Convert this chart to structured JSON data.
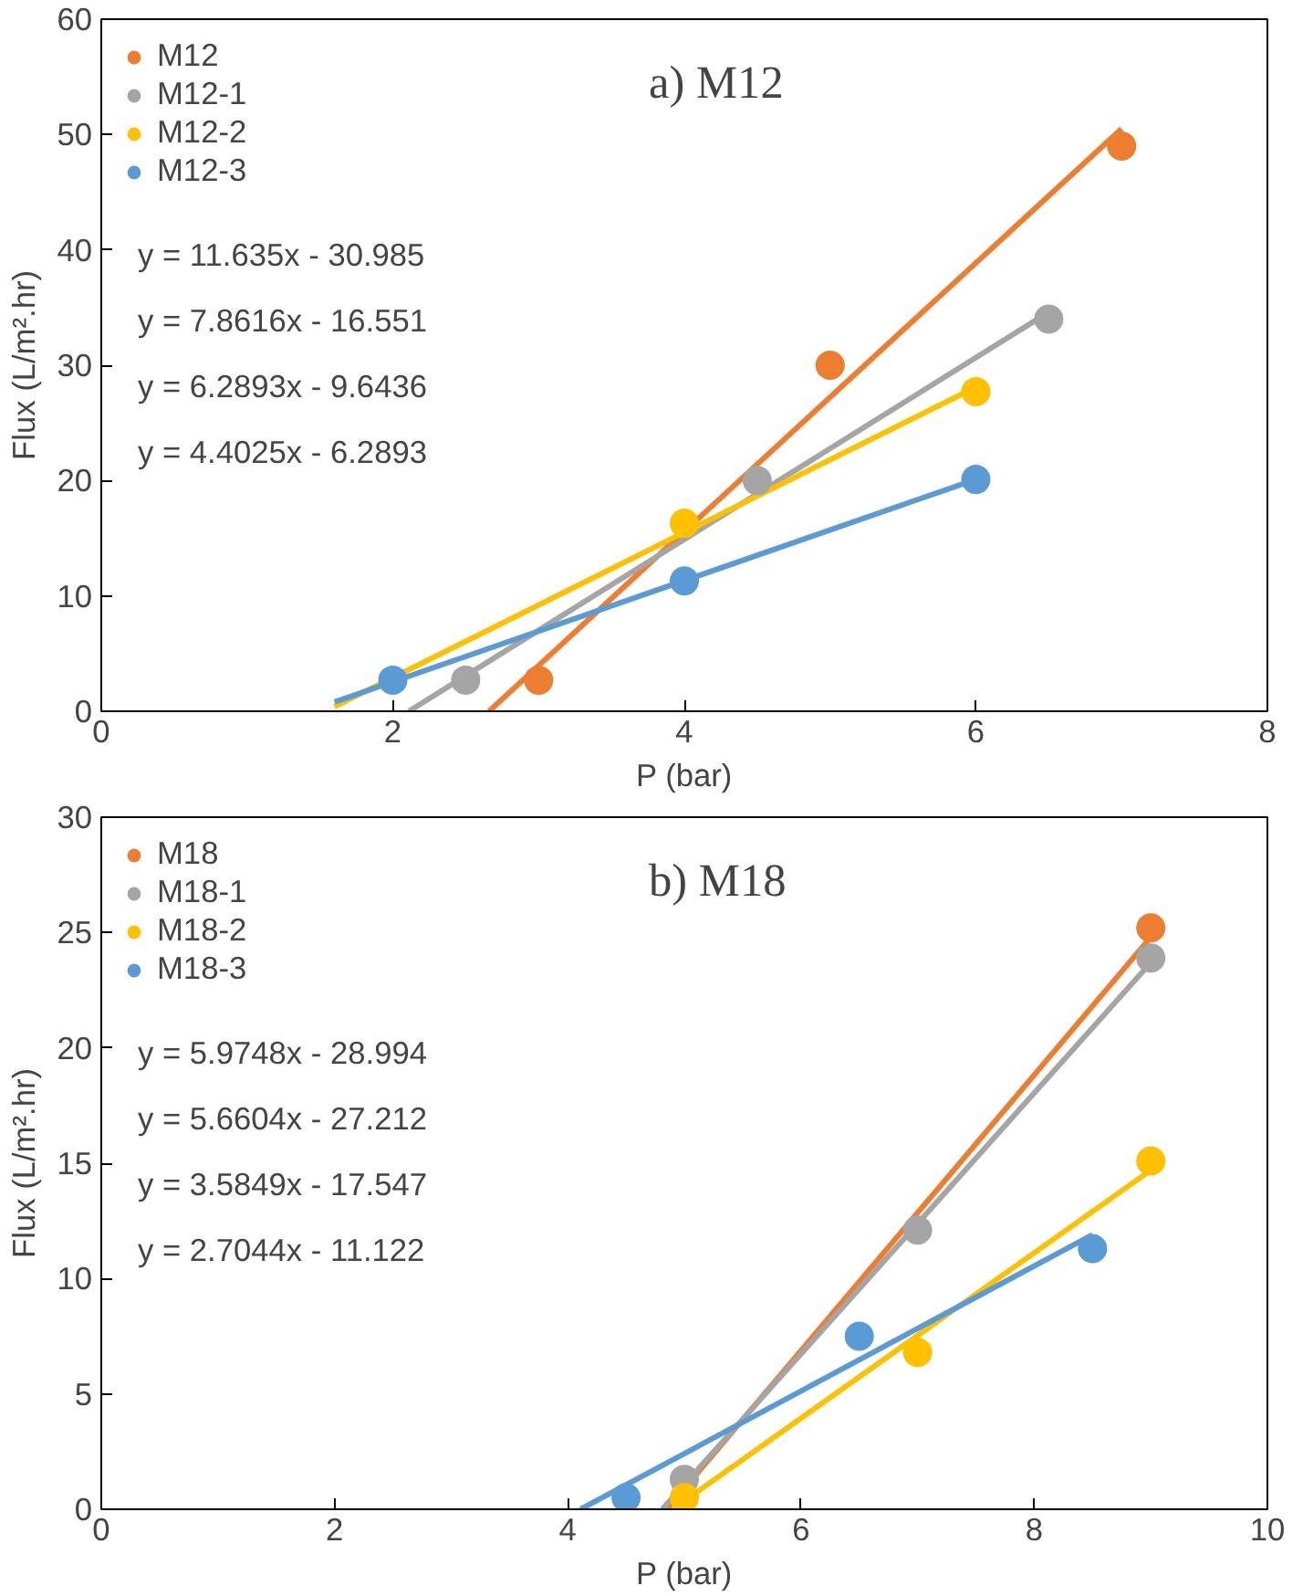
{
  "chart_data": [
    {
      "type": "scatter",
      "title": "a) M12",
      "xlabel": "P (bar)",
      "ylabel": "Flux (L/m².hr)",
      "xlim": [
        0,
        8
      ],
      "ylim": [
        0,
        60
      ],
      "xticks": [
        0,
        2,
        4,
        6,
        8
      ],
      "yticks": [
        0,
        10,
        20,
        30,
        40,
        50,
        60
      ],
      "grid": false,
      "legend": "top left",
      "marker": "circle",
      "series": [
        {
          "type": "line",
          "color": "#ed7d31",
          "x": [
            2.66,
            7
          ],
          "values": [
            0,
            50.5
          ],
          "marker": "none"
        },
        {
          "type": "line",
          "color": "#a5a5a5",
          "x": [
            2.11,
            6.5
          ],
          "values": [
            0,
            34.6
          ],
          "marker": "none"
        },
        {
          "type": "line",
          "color": "#ffc000",
          "x": [
            1.6,
            6
          ],
          "values": [
            0.4,
            28.1
          ],
          "marker": "none"
        },
        {
          "type": "line",
          "color": "#5b9bd5",
          "x": [
            1.6,
            6
          ],
          "values": [
            0.8,
            20.1
          ],
          "marker": "none"
        },
        {
          "name": "M12",
          "color": "#ed7d31",
          "x": [
            3,
            5,
            7
          ],
          "values": [
            2.7,
            30,
            49
          ]
        },
        {
          "name": "M12-1",
          "color": "#a5a5a5",
          "x": [
            2.5,
            4.5,
            6.5
          ],
          "values": [
            2.7,
            20,
            34
          ]
        },
        {
          "name": "M12-2",
          "color": "#ffc000",
          "x": [
            4,
            6
          ],
          "values": [
            16.3,
            27.7
          ]
        },
        {
          "name": "M12-3",
          "color": "#5b9bd5",
          "x": [
            2,
            4,
            6
          ],
          "values": [
            2.7,
            11.3,
            20.1
          ]
        }
      ],
      "annotations": [
        "y = 11.635x - 30.985",
        "y = 7.8616x - 16.551",
        "y = 6.2893x - 9.6436",
        "y = 4.4025x - 6.2893"
      ]
    },
    {
      "type": "scatter",
      "title": "b) M18",
      "xlabel": "P (bar)",
      "ylabel": "Flux (L/m².hr)",
      "xlim": [
        0,
        10
      ],
      "ylim": [
        0,
        30
      ],
      "xticks": [
        0,
        2,
        4,
        6,
        8,
        10
      ],
      "yticks": [
        0,
        5,
        10,
        15,
        20,
        25,
        30
      ],
      "grid": false,
      "legend": "top left",
      "marker": "circle",
      "series": [
        {
          "type": "line",
          "color": "#ed7d31",
          "x": [
            4.85,
            9
          ],
          "values": [
            0,
            24.8
          ],
          "marker": "none"
        },
        {
          "type": "line",
          "color": "#a5a5a5",
          "x": [
            4.81,
            9
          ],
          "values": [
            0,
            23.7
          ],
          "marker": "none"
        },
        {
          "type": "line",
          "color": "#ffc000",
          "x": [
            4.9,
            9
          ],
          "values": [
            0,
            14.7
          ],
          "marker": "none"
        },
        {
          "type": "line",
          "color": "#5b9bd5",
          "x": [
            4.11,
            8.5
          ],
          "values": [
            0,
            11.9
          ],
          "marker": "none"
        },
        {
          "name": "M18",
          "color": "#ed7d31",
          "x": [
            9
          ],
          "values": [
            25.2
          ]
        },
        {
          "name": "M18-1",
          "color": "#a5a5a5",
          "x": [
            5,
            7,
            9
          ],
          "values": [
            1.3,
            12.1,
            23.9
          ]
        },
        {
          "name": "M18-2",
          "color": "#ffc000",
          "x": [
            5,
            7,
            9
          ],
          "values": [
            0.5,
            6.8,
            15.1
          ]
        },
        {
          "name": "M18-3",
          "color": "#5b9bd5",
          "x": [
            4.5,
            6.5,
            8.5
          ],
          "values": [
            0.5,
            7.5,
            11.3
          ]
        }
      ],
      "annotations": [
        "y = 5.9748x - 28.994",
        "y = 5.6604x - 27.212",
        "y = 3.5849x - 17.547",
        "y = 2.7044x - 11.122"
      ]
    }
  ]
}
